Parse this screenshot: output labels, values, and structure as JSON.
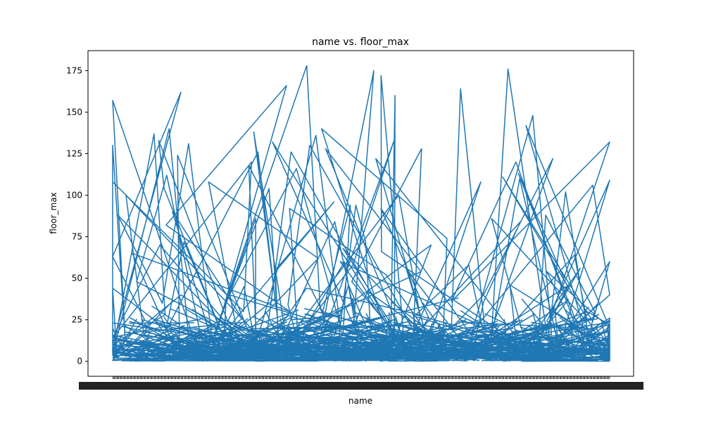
{
  "chart_data": {
    "type": "line",
    "title": "name vs. floor_max",
    "xlabel": "name",
    "ylabel": "floor_max",
    "ylim": [
      -9,
      187
    ],
    "yticks": [
      0,
      25,
      50,
      75,
      100,
      125,
      150,
      175
    ],
    "grid": false,
    "legend": "none",
    "series_color": "#1f77b4",
    "x_tick_count": 560,
    "series": [
      {
        "values": [
          8,
          3,
          20,
          58,
          130,
          12,
          157,
          6,
          18,
          2,
          44,
          9,
          140,
          4,
          25,
          63,
          162,
          10,
          28,
          137,
          5,
          108,
          30,
          120,
          14,
          70,
          2,
          88,
          35,
          131,
          8,
          16,
          100,
          3,
          40,
          22,
          6,
          112,
          48,
          12,
          124,
          2,
          65,
          30,
          82,
          166,
          10,
          90,
          26,
          4,
          38,
          126,
          18,
          72,
          8,
          104,
          133,
          24,
          3,
          55,
          96,
          15,
          45,
          6,
          118,
          28,
          10,
          86,
          35,
          2,
          62,
          108,
          20,
          5,
          46,
          14,
          72,
          94,
          8,
          32,
          178,
          12,
          104,
          26,
          138,
          4,
          60,
          18,
          132,
          9,
          40,
          116,
          22,
          136,
          6,
          54,
          128,
          12,
          30,
          84,
          3,
          100,
          28,
          44,
          8,
          126,
          16,
          160,
          6,
          70,
          20,
          2,
          130,
          34,
          10,
          92,
          52,
          4,
          74,
          140,
          14,
          24,
          58,
          132,
          8,
          175,
          20,
          42,
          3,
          16,
          94,
          30,
          6,
          68,
          11,
          48,
          128,
          2,
          60,
          22,
          8,
          108,
          12,
          84,
          36,
          4,
          56,
          18,
          122,
          8,
          66,
          172,
          6,
          26,
          92,
          2,
          164,
          20,
          40,
          122,
          10,
          58,
          28,
          4,
          110,
          16,
          46,
          2,
          86,
          24,
          64,
          8,
          176,
          12,
          102,
          4,
          142,
          20,
          54,
          6,
          120,
          36,
          132,
          14,
          50,
          113,
          8,
          30,
          88,
          2,
          40,
          106,
          18,
          148,
          6,
          60,
          24,
          111,
          12,
          46,
          3,
          56,
          18,
          8,
          22,
          30,
          10,
          37,
          12,
          4,
          24,
          109,
          20,
          1,
          26,
          18,
          1
        ]
      }
    ]
  }
}
